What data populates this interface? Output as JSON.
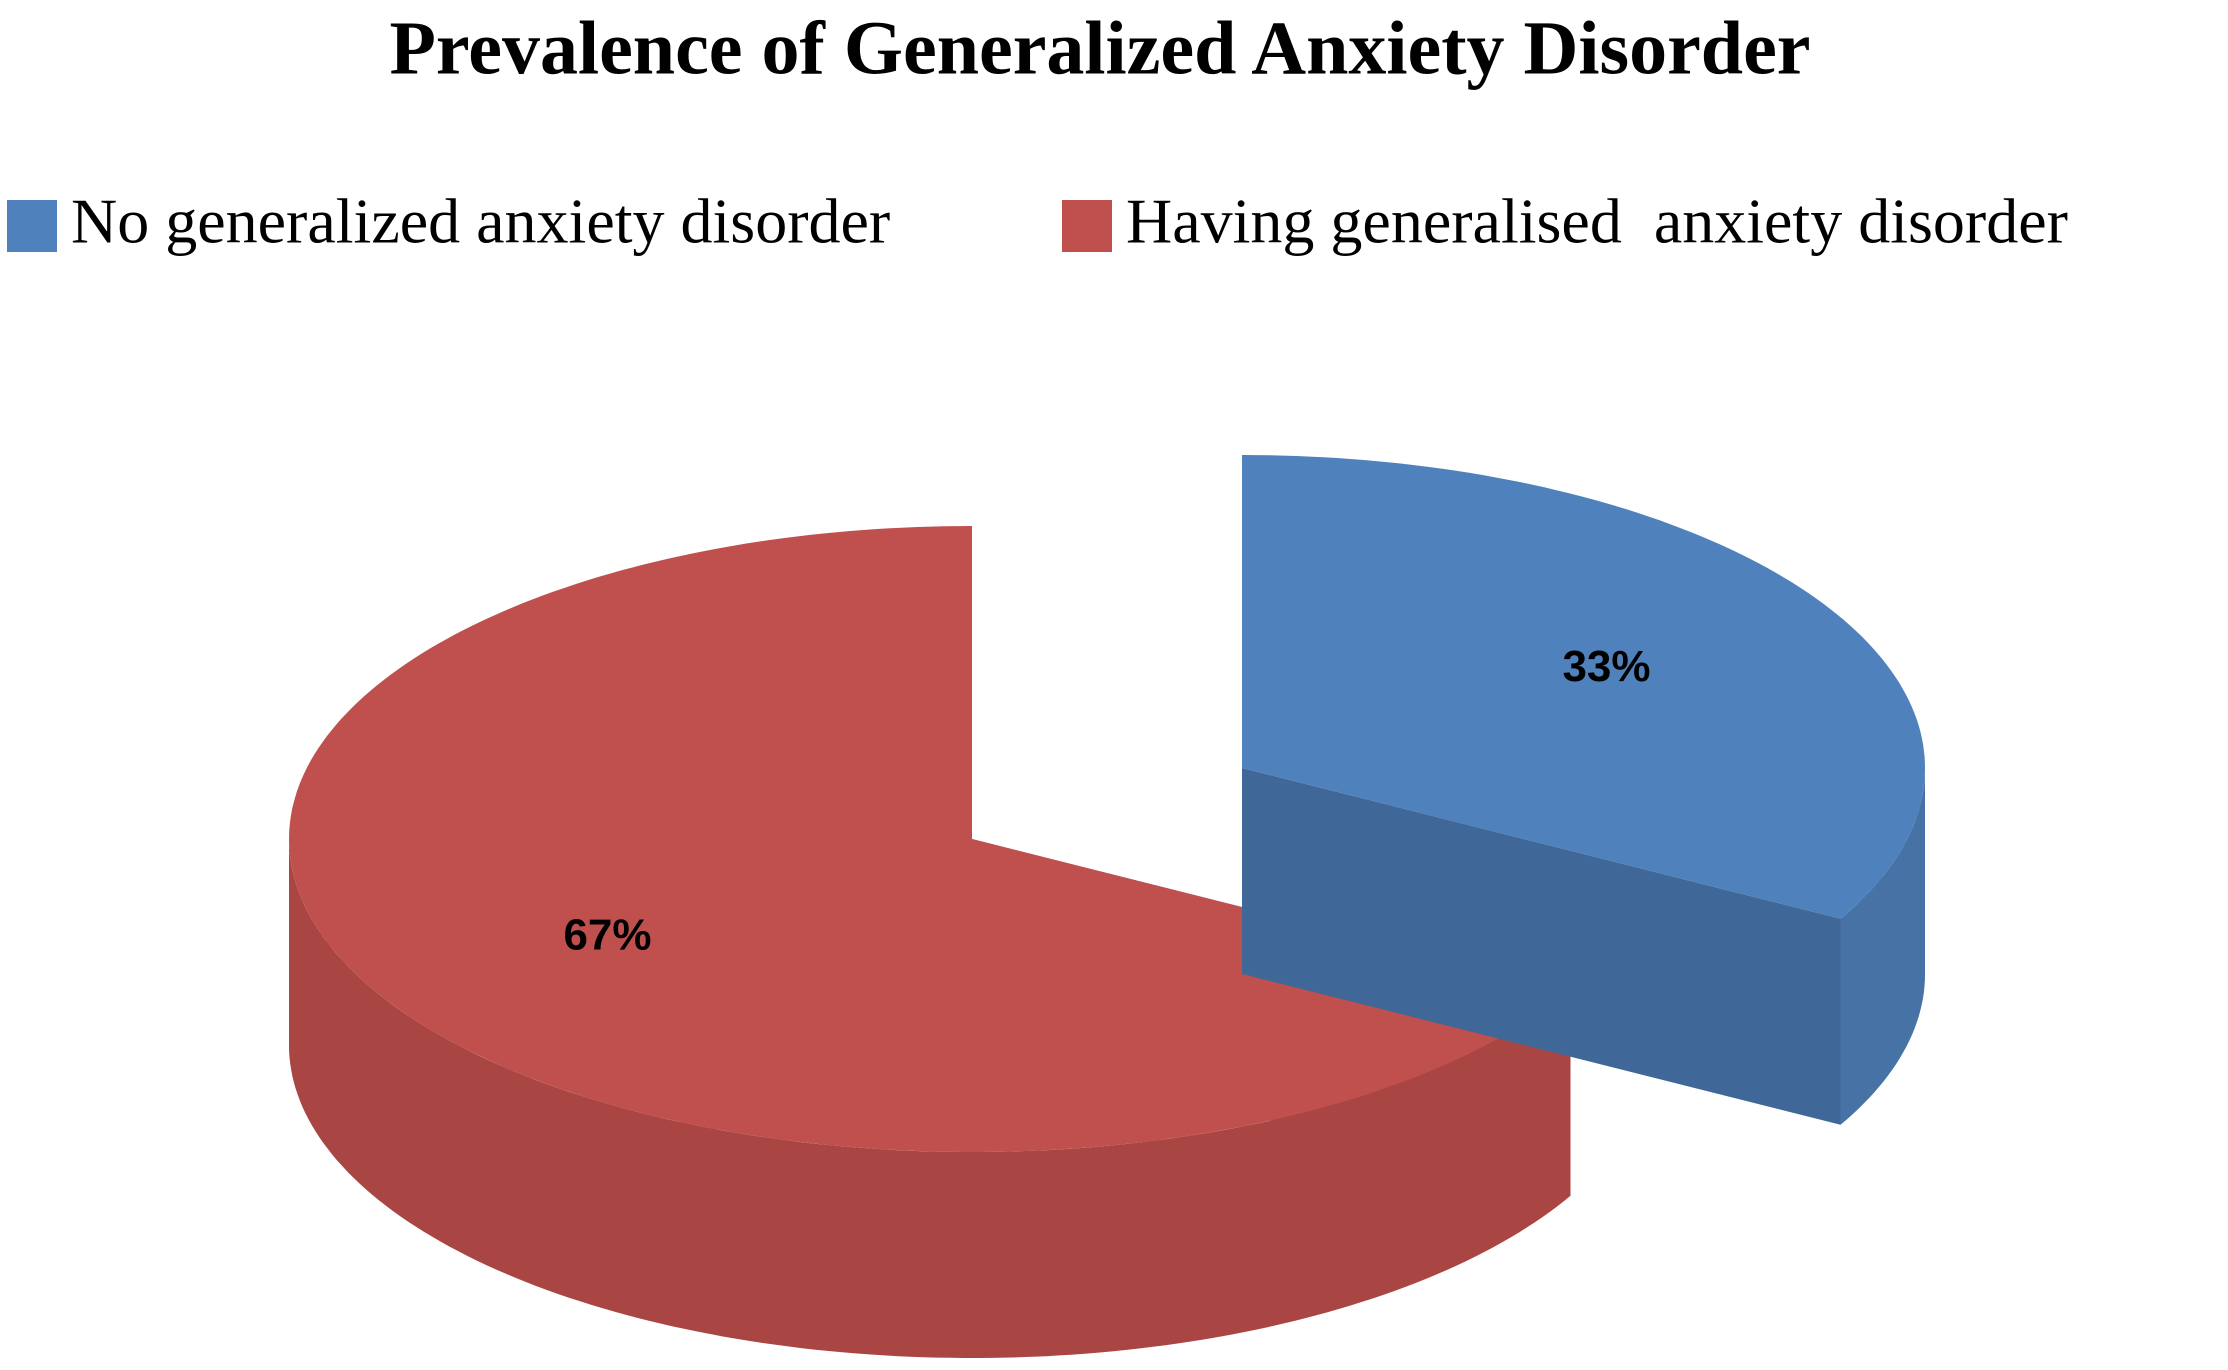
{
  "chart_data": {
    "type": "pie",
    "title": "Prevalence of Generalized Anxiety Disorder",
    "categories": [
      "No generalized anxiety disorder",
      "Having generalised  anxiety disorder"
    ],
    "values": [
      33,
      67
    ],
    "value_labels": [
      "33%",
      "67%"
    ],
    "colors": [
      "#4f81bd",
      "#c0504d"
    ],
    "legend": "top",
    "exploded": [
      true,
      false
    ]
  }
}
